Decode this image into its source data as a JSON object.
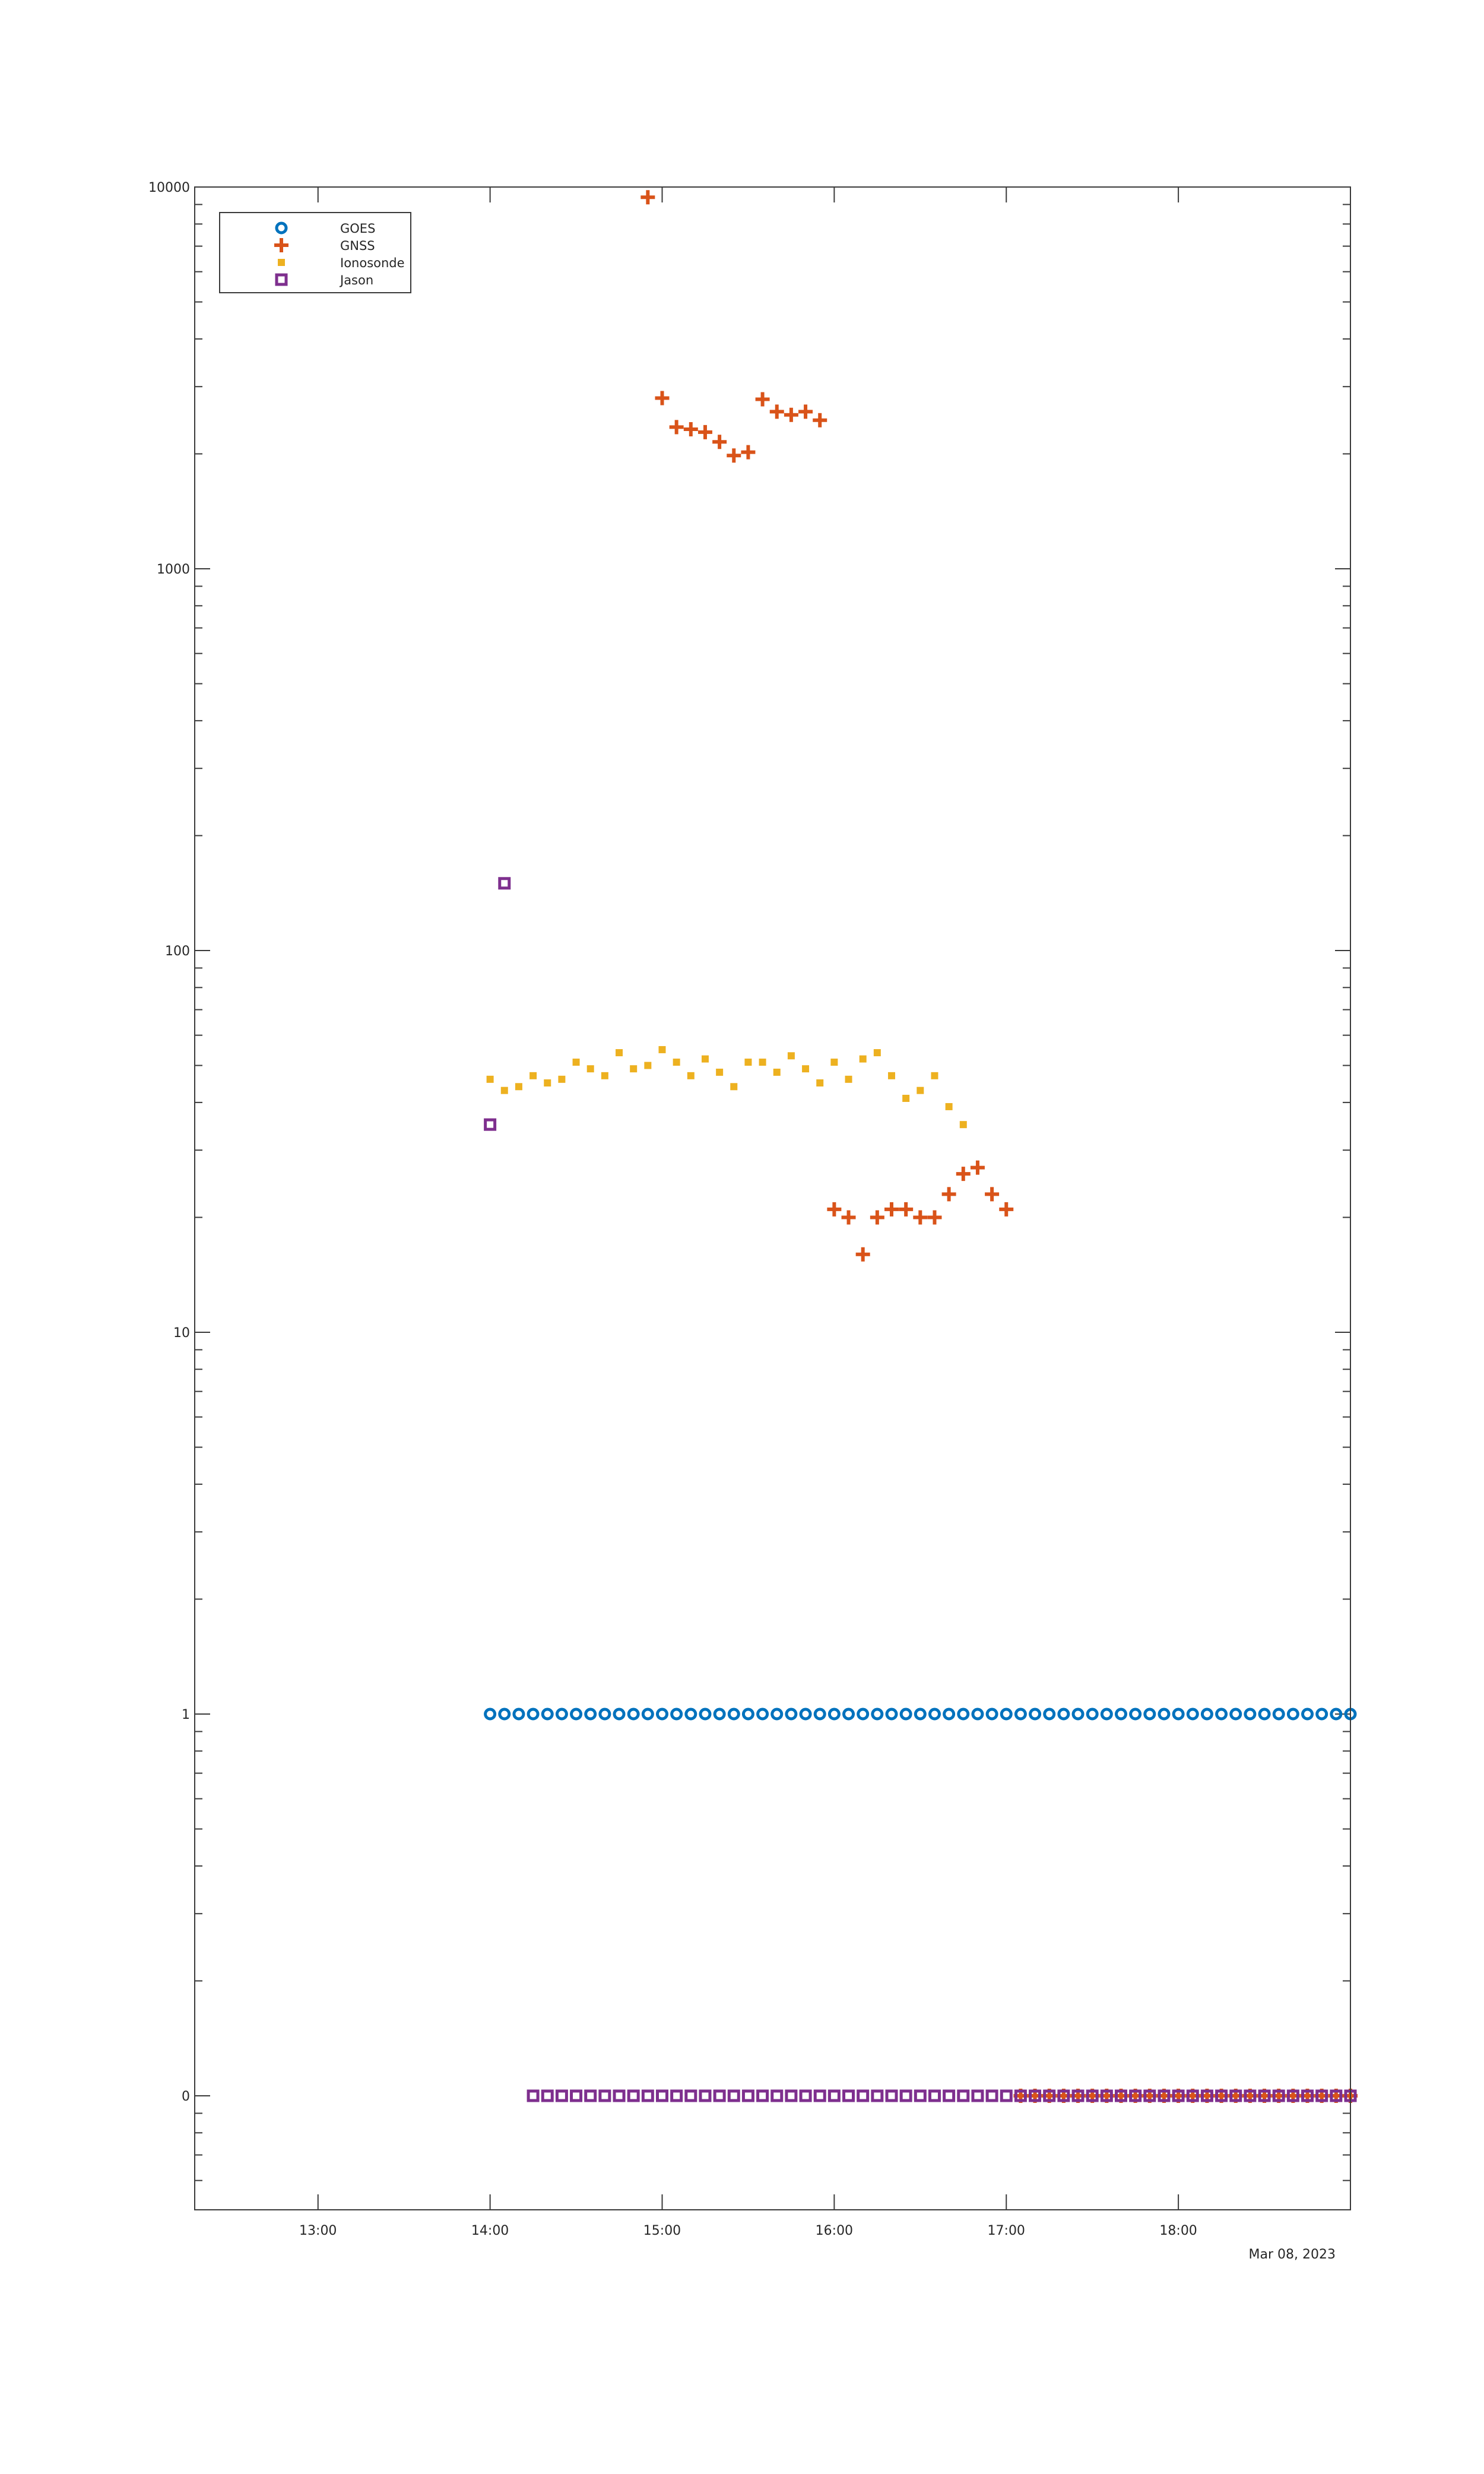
{
  "chart_data": {
    "type": "scatter",
    "y_scale": "log",
    "x_axis_type": "time",
    "x_range": [
      "2023-03-08T12:17",
      "2023-03-08T19:00"
    ],
    "y_range_ticks": [
      "0",
      "1",
      "10",
      "100",
      "1000",
      "10000"
    ],
    "x_ticks": [
      "13:00",
      "14:00",
      "15:00",
      "16:00",
      "17:00",
      "18:00"
    ],
    "x_date_label": "Mar 08, 2023",
    "grid": false,
    "legend_position": "top-left",
    "series": [
      {
        "name": "GOES",
        "marker": "circle",
        "color": "#0072BD",
        "points": [
          [
            "14:00",
            1
          ],
          [
            "14:05",
            1
          ],
          [
            "14:10",
            1
          ],
          [
            "14:15",
            1
          ],
          [
            "14:20",
            1
          ],
          [
            "14:25",
            1
          ],
          [
            "14:30",
            1
          ],
          [
            "14:35",
            1
          ],
          [
            "14:40",
            1
          ],
          [
            "14:45",
            1
          ],
          [
            "14:50",
            1
          ],
          [
            "14:55",
            1
          ],
          [
            "15:00",
            1
          ],
          [
            "15:05",
            1
          ],
          [
            "15:10",
            1
          ],
          [
            "15:15",
            1
          ],
          [
            "15:20",
            1
          ],
          [
            "15:25",
            1
          ],
          [
            "15:30",
            1
          ],
          [
            "15:35",
            1
          ],
          [
            "15:40",
            1
          ],
          [
            "15:45",
            1
          ],
          [
            "15:50",
            1
          ],
          [
            "15:55",
            1
          ],
          [
            "16:00",
            1
          ],
          [
            "16:05",
            1
          ],
          [
            "16:10",
            1
          ],
          [
            "16:15",
            1
          ],
          [
            "16:20",
            1
          ],
          [
            "16:25",
            1
          ],
          [
            "16:30",
            1
          ],
          [
            "16:35",
            1
          ],
          [
            "16:40",
            1
          ],
          [
            "16:45",
            1
          ],
          [
            "16:50",
            1
          ],
          [
            "16:55",
            1
          ],
          [
            "17:00",
            1
          ],
          [
            "17:05",
            1
          ],
          [
            "17:10",
            1
          ],
          [
            "17:15",
            1
          ],
          [
            "17:20",
            1
          ],
          [
            "17:25",
            1
          ],
          [
            "17:30",
            1
          ],
          [
            "17:35",
            1
          ],
          [
            "17:40",
            1
          ],
          [
            "17:45",
            1
          ],
          [
            "17:50",
            1
          ],
          [
            "17:55",
            1
          ],
          [
            "18:00",
            1
          ],
          [
            "18:05",
            1
          ],
          [
            "18:10",
            1
          ],
          [
            "18:15",
            1
          ],
          [
            "18:20",
            1
          ],
          [
            "18:25",
            1
          ],
          [
            "18:30",
            1
          ],
          [
            "18:35",
            1
          ],
          [
            "18:40",
            1
          ],
          [
            "18:45",
            1
          ],
          [
            "18:50",
            1
          ],
          [
            "18:55",
            1
          ],
          [
            "19:00",
            1
          ]
        ]
      },
      {
        "name": "GNSS",
        "marker": "plus",
        "color": "#D95319",
        "points": [
          [
            "14:55",
            9400
          ],
          [
            "15:00",
            2800
          ],
          [
            "15:05",
            2350
          ],
          [
            "15:10",
            2320
          ],
          [
            "15:15",
            2280
          ],
          [
            "15:20",
            2150
          ],
          [
            "15:25",
            1980
          ],
          [
            "15:30",
            2020
          ],
          [
            "15:35",
            2780
          ],
          [
            "15:40",
            2580
          ],
          [
            "15:45",
            2530
          ],
          [
            "15:50",
            2580
          ],
          [
            "15:55",
            2450
          ],
          [
            "16:00",
            21
          ],
          [
            "16:05",
            20
          ],
          [
            "16:10",
            16
          ],
          [
            "16:15",
            20
          ],
          [
            "16:20",
            21
          ],
          [
            "16:25",
            21
          ],
          [
            "16:30",
            20
          ],
          [
            "16:35",
            20
          ],
          [
            "16:40",
            23
          ],
          [
            "16:45",
            26
          ],
          [
            "16:50",
            27
          ],
          [
            "16:55",
            23
          ],
          [
            "17:00",
            21
          ],
          [
            "17:05",
            0
          ],
          [
            "17:10",
            0
          ],
          [
            "17:15",
            0
          ],
          [
            "17:20",
            0
          ],
          [
            "17:25",
            0
          ],
          [
            "17:30",
            0
          ],
          [
            "17:35",
            0
          ],
          [
            "17:40",
            0
          ],
          [
            "17:45",
            0
          ],
          [
            "17:50",
            0
          ],
          [
            "17:55",
            0
          ],
          [
            "18:00",
            0
          ],
          [
            "18:05",
            0
          ],
          [
            "18:10",
            0
          ],
          [
            "18:15",
            0
          ],
          [
            "18:20",
            0
          ],
          [
            "18:25",
            0
          ],
          [
            "18:30",
            0
          ],
          [
            "18:35",
            0
          ],
          [
            "18:40",
            0
          ],
          [
            "18:45",
            0
          ],
          [
            "18:50",
            0
          ],
          [
            "18:55",
            0
          ],
          [
            "19:00",
            0
          ]
        ]
      },
      {
        "name": "Ionosonde",
        "marker": "square-filled",
        "color": "#EDB120",
        "points": [
          [
            "14:00",
            46
          ],
          [
            "14:05",
            43
          ],
          [
            "14:10",
            44
          ],
          [
            "14:15",
            47
          ],
          [
            "14:20",
            45
          ],
          [
            "14:25",
            46
          ],
          [
            "14:30",
            51
          ],
          [
            "14:35",
            49
          ],
          [
            "14:40",
            47
          ],
          [
            "14:45",
            54
          ],
          [
            "14:50",
            49
          ],
          [
            "14:55",
            50
          ],
          [
            "15:00",
            55
          ],
          [
            "15:05",
            51
          ],
          [
            "15:10",
            47
          ],
          [
            "15:15",
            52
          ],
          [
            "15:20",
            48
          ],
          [
            "15:25",
            44
          ],
          [
            "15:30",
            51
          ],
          [
            "15:35",
            51
          ],
          [
            "15:40",
            48
          ],
          [
            "15:45",
            53
          ],
          [
            "15:50",
            49
          ],
          [
            "15:55",
            45
          ],
          [
            "16:00",
            51
          ],
          [
            "16:05",
            46
          ],
          [
            "16:10",
            52
          ],
          [
            "16:15",
            54
          ],
          [
            "16:20",
            47
          ],
          [
            "16:25",
            41
          ],
          [
            "16:30",
            43
          ],
          [
            "16:35",
            47
          ],
          [
            "16:40",
            39
          ],
          [
            "16:45",
            35
          ]
        ]
      },
      {
        "name": "Jason",
        "marker": "square",
        "color": "#7E2F8E",
        "points": [
          [
            "14:00",
            35
          ],
          [
            "14:05",
            150
          ],
          [
            "14:15",
            0
          ],
          [
            "14:20",
            0
          ],
          [
            "14:25",
            0
          ],
          [
            "14:30",
            0
          ],
          [
            "14:35",
            0
          ],
          [
            "14:40",
            0
          ],
          [
            "14:45",
            0
          ],
          [
            "14:50",
            0
          ],
          [
            "14:55",
            0
          ],
          [
            "15:00",
            0
          ],
          [
            "15:05",
            0
          ],
          [
            "15:10",
            0
          ],
          [
            "15:15",
            0
          ],
          [
            "15:20",
            0
          ],
          [
            "15:25",
            0
          ],
          [
            "15:30",
            0
          ],
          [
            "15:35",
            0
          ],
          [
            "15:40",
            0
          ],
          [
            "15:45",
            0
          ],
          [
            "15:50",
            0
          ],
          [
            "15:55",
            0
          ],
          [
            "16:00",
            0
          ],
          [
            "16:05",
            0
          ],
          [
            "16:10",
            0
          ],
          [
            "16:15",
            0
          ],
          [
            "16:20",
            0
          ],
          [
            "16:25",
            0
          ],
          [
            "16:30",
            0
          ],
          [
            "16:35",
            0
          ],
          [
            "16:40",
            0
          ],
          [
            "16:45",
            0
          ],
          [
            "16:50",
            0
          ],
          [
            "16:55",
            0
          ],
          [
            "17:00",
            0
          ],
          [
            "17:05",
            0
          ],
          [
            "17:10",
            0
          ],
          [
            "17:15",
            0
          ],
          [
            "17:20",
            0
          ],
          [
            "17:25",
            0
          ],
          [
            "17:30",
            0
          ],
          [
            "17:35",
            0
          ],
          [
            "17:40",
            0
          ],
          [
            "17:45",
            0
          ],
          [
            "17:50",
            0
          ],
          [
            "17:55",
            0
          ],
          [
            "18:00",
            0
          ],
          [
            "18:05",
            0
          ],
          [
            "18:10",
            0
          ],
          [
            "18:15",
            0
          ],
          [
            "18:20",
            0
          ],
          [
            "18:25",
            0
          ],
          [
            "18:30",
            0
          ],
          [
            "18:35",
            0
          ],
          [
            "18:40",
            0
          ],
          [
            "18:45",
            0
          ],
          [
            "18:50",
            0
          ],
          [
            "18:55",
            0
          ],
          [
            "19:00",
            0
          ]
        ]
      }
    ]
  }
}
